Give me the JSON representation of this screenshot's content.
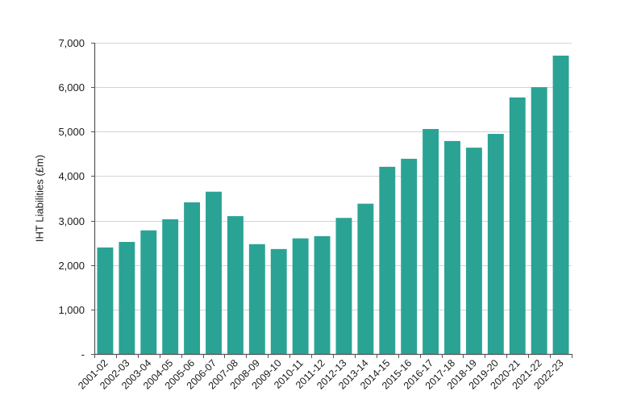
{
  "chart_data": {
    "type": "bar",
    "title": "",
    "xlabel": "",
    "ylabel": "IHT Liabilities (£m)",
    "ylim": [
      0,
      7000
    ],
    "yticks": [
      0,
      1000,
      2000,
      3000,
      4000,
      5000,
      6000,
      7000
    ],
    "ytick_labels": [
      "-",
      "1,000",
      "2,000",
      "3,000",
      "4,000",
      "5,000",
      "6,000",
      "7,000"
    ],
    "grid": true,
    "legend": null,
    "bar_color": "#2aa395",
    "categories": [
      "2001-02",
      "2002-03",
      "2003-04",
      "2004-05",
      "2005-06",
      "2006-07",
      "2007-08",
      "2008-09",
      "2009-10",
      "2010-11",
      "2011-12",
      "2012-13",
      "2013-14",
      "2014-15",
      "2015-16",
      "2016-17",
      "2017-18",
      "2018-19",
      "2019-20",
      "2020-21",
      "2021-22",
      "2022-23"
    ],
    "values": [
      2395,
      2520,
      2780,
      3030,
      3410,
      3650,
      3100,
      2470,
      2360,
      2600,
      2650,
      3060,
      3380,
      4210,
      4390,
      5060,
      4790,
      4640,
      4950,
      5770,
      6000,
      6710
    ]
  }
}
